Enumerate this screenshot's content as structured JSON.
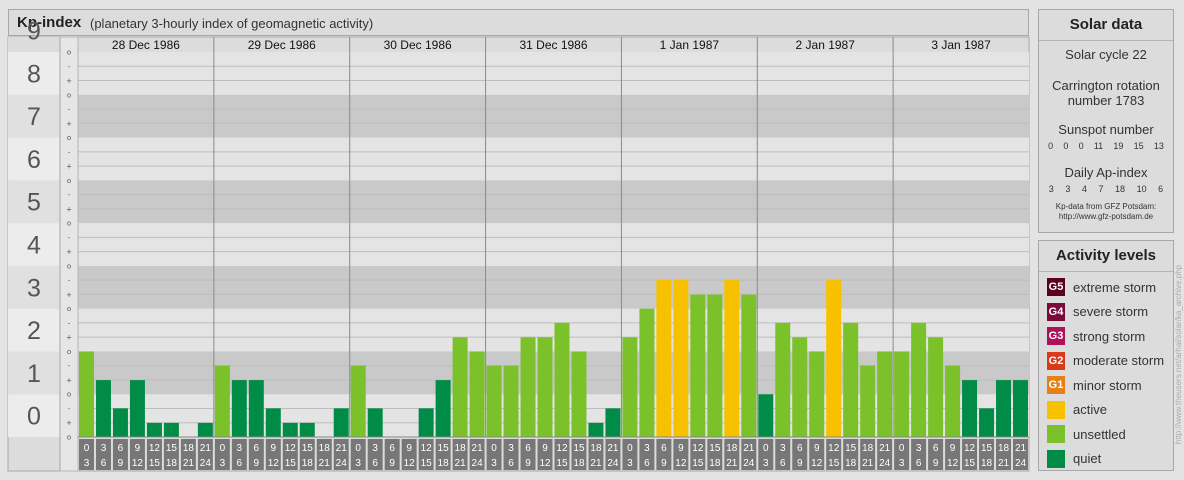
{
  "header": {
    "title": "Kp-index",
    "subtitle": "(planetary 3-hourly index of geomagnetic activity)"
  },
  "chart_data": {
    "type": "bar",
    "ylim": [
      0,
      9
    ],
    "y_ticks": [
      "0",
      "1",
      "2",
      "3",
      "4",
      "5",
      "6",
      "7",
      "8",
      "9"
    ],
    "minor_ticks": [
      "+",
      "o",
      "-"
    ],
    "days": [
      "28 Dec 1986",
      "29 Dec 1986",
      "30 Dec 1986",
      "31 Dec 1986",
      "1 Jan 1987",
      "2 Jan 1987",
      "3 Jan 1987"
    ],
    "hours_top": [
      "0",
      "3",
      "6",
      "9",
      "12",
      "15",
      "18",
      "21"
    ],
    "hours_bottom": [
      "3",
      "6",
      "9",
      "12",
      "15",
      "18",
      "21",
      "24"
    ],
    "values": [
      [
        2.0,
        1.33,
        0.67,
        1.33,
        0.33,
        0.33,
        0.0,
        0.33
      ],
      [
        1.67,
        1.33,
        1.33,
        0.67,
        0.33,
        0.33,
        0.0,
        0.67
      ],
      [
        1.67,
        0.67,
        0.0,
        0.0,
        0.67,
        1.33,
        2.33,
        2.0
      ],
      [
        1.67,
        1.67,
        2.33,
        2.33,
        2.67,
        2.0,
        0.33,
        0.67
      ],
      [
        2.33,
        3.0,
        3.67,
        3.67,
        3.33,
        3.33,
        3.67,
        3.33
      ],
      [
        1.0,
        2.67,
        2.33,
        2.0,
        3.67,
        2.67,
        1.67,
        2.0
      ],
      [
        2.0,
        2.67,
        2.33,
        1.67,
        1.33,
        0.67,
        1.33,
        1.33
      ]
    ],
    "colors": {
      "quiet": "#008c46",
      "unsettled": "#7ac12a",
      "active": "#f8c100"
    }
  },
  "solar": {
    "title": "Solar data",
    "cycle": "Solar cycle 22",
    "carrington_line1": "Carrington rotation",
    "carrington_line2": "number 1783",
    "sunspot_label": "Sunspot number",
    "sunspot_values": [
      "0",
      "0",
      "0",
      "11",
      "19",
      "15",
      "13"
    ],
    "ap_label": "Daily Ap-index",
    "ap_values": [
      "3",
      "3",
      "4",
      "7",
      "18",
      "10",
      "6"
    ],
    "credit_line1": "Kp-data from GFZ Potsdam:",
    "credit_line2": "http://www.gfz-potsdam.de"
  },
  "activity": {
    "title": "Activity levels",
    "levels": [
      {
        "code": "G5",
        "label": "extreme storm",
        "color": "#5a0020"
      },
      {
        "code": "G4",
        "label": "severe storm",
        "color": "#7a0a3a"
      },
      {
        "code": "G3",
        "label": "strong storm",
        "color": "#b0105a"
      },
      {
        "code": "G2",
        "label": "moderate storm",
        "color": "#d83a1a"
      },
      {
        "code": "G1",
        "label": "minor storm",
        "color": "#e88018"
      },
      {
        "code": "",
        "label": "active",
        "color": "#f8c100"
      },
      {
        "code": "",
        "label": "unsettled",
        "color": "#7ac12a"
      },
      {
        "code": "",
        "label": "quiet",
        "color": "#008c46"
      }
    ]
  },
  "watermark": "http://www.theusers.net/arhal/solar/ka_archive.php"
}
